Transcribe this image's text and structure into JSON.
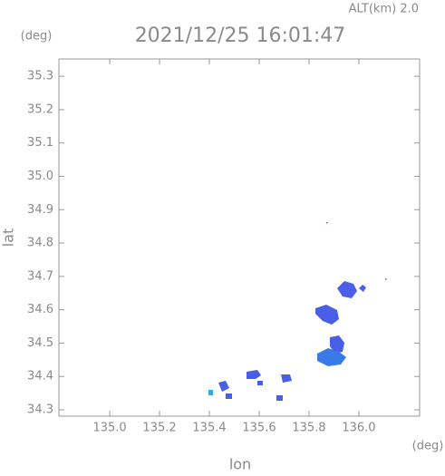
{
  "chart_data": {
    "type": "map",
    "title": "2021/12/25 16:01:47",
    "altitude_label": "ALT(km) 2.0",
    "x_unit": "(deg)",
    "y_unit": "(deg)",
    "xlabel": "lon",
    "ylabel": "lat",
    "xlim": [
      134.796,
      136.244
    ],
    "ylim": [
      34.281,
      35.352
    ],
    "xticks": [
      {
        "value": 135,
        "label": "135.0"
      },
      135.2,
      135.4,
      135.6,
      135.8,
      {
        "value": 136,
        "label": "136.0"
      }
    ],
    "yticks": [
      34.3,
      34.4,
      34.5,
      34.6,
      34.7,
      34.8,
      34.9,
      {
        "value": 35,
        "label": "35.0"
      },
      35.1,
      35.2,
      35.3
    ],
    "grid": false
  }
}
